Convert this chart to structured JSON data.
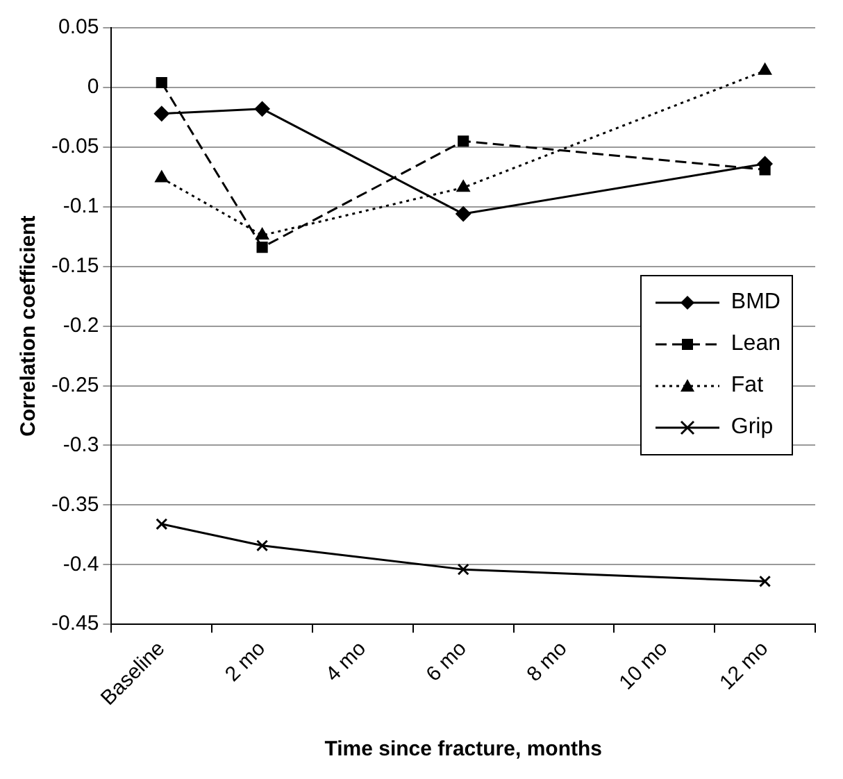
{
  "chart_data": {
    "type": "line",
    "xlabel": "Time since fracture, months",
    "ylabel": "Correlation coefficient",
    "categories": [
      "Baseline",
      "2 mo",
      "4 mo",
      "6 mo",
      "8 mo",
      "10 mo",
      "12 mo"
    ],
    "series": [
      {
        "name": "BMD",
        "color": "#000000",
        "marker": "diamond",
        "line_style": "solid",
        "values": [
          -0.022,
          -0.018,
          null,
          -0.106,
          null,
          null,
          -0.064
        ]
      },
      {
        "name": "Lean",
        "color": "#000000",
        "marker": "square",
        "line_style": "dashed",
        "values": [
          0.004,
          -0.134,
          null,
          -0.045,
          null,
          null,
          -0.069
        ]
      },
      {
        "name": "Fat",
        "color": "#000000",
        "marker": "triangle",
        "line_style": "dotted",
        "values": [
          -0.076,
          -0.124,
          null,
          -0.084,
          null,
          null,
          0.014
        ]
      },
      {
        "name": "Grip",
        "color": "#000000",
        "marker": "cross",
        "line_style": "solid",
        "values": [
          -0.366,
          -0.384,
          null,
          -0.404,
          null,
          null,
          -0.414
        ]
      }
    ],
    "ylim": [
      -0.45,
      0.05
    ],
    "yticks": [
      -0.45,
      -0.4,
      -0.35,
      -0.3,
      -0.25,
      -0.2,
      -0.15,
      -0.1,
      -0.05,
      0,
      0.05
    ],
    "grid": "y",
    "legend": "right"
  }
}
